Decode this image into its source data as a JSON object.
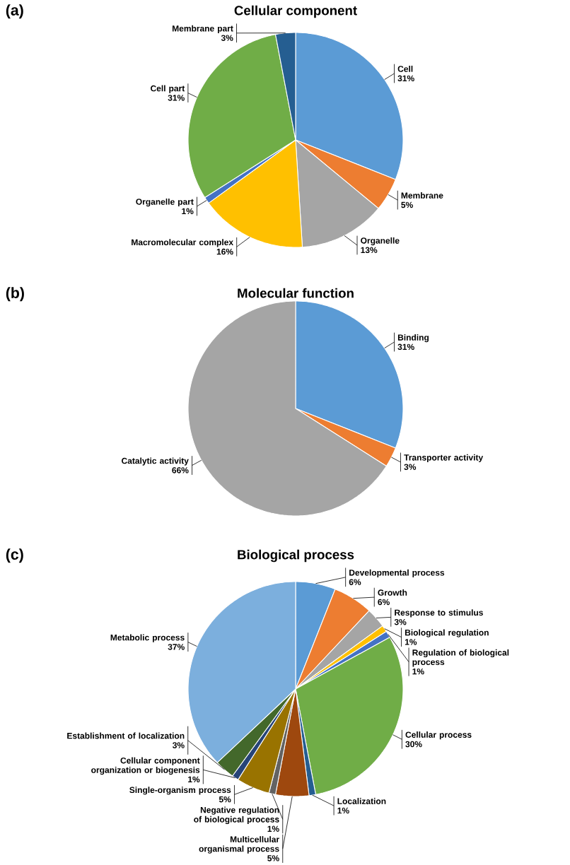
{
  "chart_data": [
    {
      "type": "pie",
      "title": "Cellular component",
      "annotations": [
        "(a)"
      ],
      "categories": [
        "Cell",
        "Membrane",
        "Organelle",
        "Macromolecular complex",
        "Organelle part",
        "Cell part",
        "Membrane part"
      ],
      "values": [
        31,
        5,
        13,
        16,
        1,
        31,
        3
      ],
      "value_labels": [
        "31%",
        "5%",
        "13%",
        "16%",
        "1%",
        "31%",
        "3%"
      ],
      "colors": [
        "#5b9bd5",
        "#ed7d31",
        "#a5a5a5",
        "#ffc000",
        "#4472c4",
        "#70ad47",
        "#255e91"
      ]
    },
    {
      "type": "pie",
      "title": "Molecular function",
      "annotations": [
        "(b)"
      ],
      "categories": [
        "Binding",
        "Transporter activity",
        "Catalytic activity"
      ],
      "values": [
        31,
        3,
        66
      ],
      "value_labels": [
        "31%",
        "3%",
        "66%"
      ],
      "colors": [
        "#5b9bd5",
        "#ed7d31",
        "#a5a5a5"
      ]
    },
    {
      "type": "pie",
      "title": "Biological process",
      "annotations": [
        "(c)"
      ],
      "categories": [
        "Developmental process",
        "Growth",
        "Response to stimulus",
        "Biological regulation",
        "Regulation of biological process",
        "Cellular process",
        "Localization",
        "Multicellular organismal process",
        "Negative regulation of biological process",
        "Single-organism process",
        "Cellular component organization or biogenesis",
        "Establishment of localization",
        "Metabolic process"
      ],
      "values": [
        6,
        6,
        3,
        1,
        1,
        30,
        1,
        5,
        1,
        5,
        1,
        3,
        37
      ],
      "value_labels": [
        "6%",
        "6%",
        "3%",
        "1%",
        "1%",
        "30%",
        "1%",
        "5%",
        "1%",
        "5%",
        "1%",
        "3%",
        "37%"
      ],
      "colors": [
        "#5b9bd5",
        "#ed7d31",
        "#a5a5a5",
        "#ffc000",
        "#4472c4",
        "#70ad47",
        "#255e91",
        "#9e480e",
        "#636363",
        "#997300",
        "#264478",
        "#43682b",
        "#7cafdd"
      ]
    }
  ]
}
